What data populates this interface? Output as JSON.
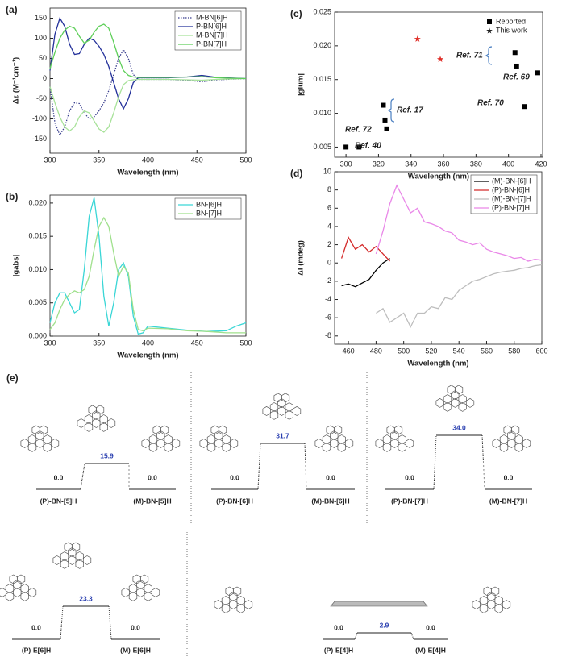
{
  "chart_data": [
    {
      "panel_label": "(a)",
      "type": "line",
      "x_label": "Wavelength (nm)",
      "y_label": "Δε (M⁻¹cm⁻¹)",
      "xlim": [
        300,
        500
      ],
      "xticks": [
        300,
        350,
        400,
        450,
        500
      ],
      "ylim": [
        -185,
        175
      ],
      "yticks": [
        -150,
        -100,
        -50,
        0,
        50,
        100,
        150
      ],
      "legend": "upper right",
      "x": [
        300,
        305,
        310,
        315,
        320,
        325,
        330,
        335,
        340,
        345,
        350,
        355,
        360,
        365,
        370,
        375,
        380,
        385,
        390,
        400,
        420,
        440,
        455,
        470,
        500
      ],
      "series": [
        {
          "name": "M-BN[6]H",
          "color": "#3a3f8f",
          "line_style": "dotted",
          "values": [
            -20,
            -110,
            -140,
            -120,
            -80,
            -60,
            -62,
            -85,
            -100,
            -95,
            -80,
            -60,
            -30,
            10,
            50,
            72,
            50,
            10,
            -2,
            -2,
            -2,
            -4,
            -8,
            -3,
            0
          ]
        },
        {
          "name": "P-BN[6]H",
          "color": "#23309a",
          "line_style": "solid",
          "values": [
            20,
            110,
            150,
            130,
            85,
            60,
            62,
            85,
            100,
            95,
            80,
            60,
            30,
            -10,
            -50,
            -75,
            -50,
            -10,
            2,
            2,
            2,
            4,
            8,
            3,
            0
          ]
        },
        {
          "name": "M-BN[7]H",
          "color": "#a8e29a",
          "line_style": "solid",
          "values": [
            -20,
            -60,
            -95,
            -120,
            -130,
            -120,
            -95,
            -80,
            -85,
            -105,
            -125,
            -133,
            -120,
            -85,
            -45,
            -15,
            -5,
            -3,
            -2,
            -2,
            -2,
            -3,
            -4,
            -2,
            0
          ]
        },
        {
          "name": "P-BN[7]H",
          "color": "#5fcf5a",
          "line_style": "solid",
          "values": [
            25,
            65,
            100,
            120,
            130,
            125,
            105,
            88,
            95,
            115,
            130,
            135,
            125,
            90,
            50,
            20,
            8,
            4,
            3,
            3,
            3,
            4,
            5,
            2,
            0
          ]
        }
      ]
    },
    {
      "panel_label": "(b)",
      "type": "line",
      "x_label": "Wavelength (nm)",
      "y_label": "|gabs|",
      "xlim": [
        300,
        500
      ],
      "xticks": [
        300,
        350,
        400,
        450,
        500
      ],
      "ylim": [
        0,
        0.0212
      ],
      "yticks": [
        {
          "value": 0,
          "label": "0.000"
        },
        {
          "value": 0.005,
          "label": "0.005"
        },
        {
          "value": 0.01,
          "label": "0.010"
        },
        {
          "value": 0.015,
          "label": "0.015"
        },
        {
          "value": 0.02,
          "label": "0.020"
        }
      ],
      "legend": "upper right",
      "x": [
        300,
        305,
        310,
        315,
        320,
        325,
        330,
        335,
        340,
        345,
        350,
        355,
        360,
        365,
        370,
        375,
        380,
        385,
        390,
        395,
        400,
        420,
        440,
        460,
        480,
        490,
        500
      ],
      "series": [
        {
          "name": "BN-[6]H",
          "color": "#3ad6d6",
          "line_style": "solid",
          "values": [
            0.002,
            0.005,
            0.0065,
            0.0065,
            0.005,
            0.0035,
            0.004,
            0.01,
            0.018,
            0.0208,
            0.015,
            0.006,
            0.0015,
            0.005,
            0.01,
            0.011,
            0.009,
            0.003,
            0.0003,
            0.0005,
            0.0015,
            0.0012,
            0.0009,
            0.0007,
            0.0008,
            0.0015,
            0.002
          ]
        },
        {
          "name": "BN-[7]H",
          "color": "#9fe08c",
          "line_style": "solid",
          "values": [
            0.001,
            0.002,
            0.004,
            0.0055,
            0.0063,
            0.0068,
            0.0065,
            0.007,
            0.009,
            0.013,
            0.0165,
            0.0178,
            0.0165,
            0.0125,
            0.009,
            0.0105,
            0.0095,
            0.004,
            0.001,
            0.0008,
            0.0012,
            0.0011,
            0.0008,
            0.0007,
            0.0005,
            0.0005,
            0.0005
          ]
        }
      ]
    },
    {
      "panel_label": "(c)",
      "type": "scatter",
      "x_label": "Wavelength (nm)",
      "y_label": "|glum|",
      "xlim": [
        293,
        421
      ],
      "xticks": [
        300,
        320,
        340,
        360,
        380,
        400,
        420
      ],
      "ylim": [
        0.0035,
        0.025
      ],
      "yticks": [
        {
          "value": 0.005,
          "label": "0.005"
        },
        {
          "value": 0.01,
          "label": "0.010"
        },
        {
          "value": 0.015,
          "label": "0.015"
        },
        {
          "value": 0.02,
          "label": "0.020"
        },
        {
          "value": 0.025,
          "label": "0.025"
        }
      ],
      "legend": "upper right",
      "annotations": [
        "Ref. 72",
        "Ref. 40",
        "Ref. 17",
        "Ref. 71",
        "Ref. 69",
        "Ref. 70"
      ],
      "series": [
        {
          "name": "Reported",
          "color": "#000000",
          "marker": "square",
          "x": [
            300,
            308,
            323,
            324,
            325,
            404,
            405,
            410,
            418
          ],
          "values": [
            0.005,
            0.005,
            0.0112,
            0.009,
            0.0077,
            0.019,
            0.017,
            0.011,
            0.016
          ]
        },
        {
          "name": "This work",
          "color": "#e0302a",
          "marker": "star",
          "x": [
            344,
            358
          ],
          "values": [
            0.021,
            0.018
          ]
        }
      ]
    },
    {
      "panel_label": "(d)",
      "type": "line",
      "x_label": "Wavelength (nm)",
      "y_label": "ΔI (mdeg)",
      "xlim": [
        450,
        600
      ],
      "xticks": [
        460,
        480,
        500,
        520,
        540,
        560,
        580,
        600
      ],
      "ylim": [
        -8.9,
        10
      ],
      "yticks": [
        -8,
        -6,
        -4,
        -2,
        0,
        2,
        4,
        6,
        8,
        10
      ],
      "legend": "upper right",
      "series": [
        {
          "name": "(M)-BN-[6]H",
          "color": "#000000",
          "line_style": "solid",
          "x": [
            455,
            460,
            465,
            470,
            475,
            480,
            485,
            490
          ],
          "values": [
            -2.5,
            -2.3,
            -2.6,
            -2.2,
            -1.8,
            -0.8,
            0,
            0.5
          ]
        },
        {
          "name": "(P)-BN-[6]H",
          "color": "#d42a2a",
          "line_style": "solid",
          "x": [
            455,
            460,
            465,
            470,
            475,
            480,
            485,
            490
          ],
          "values": [
            0.5,
            2.8,
            1.5,
            2,
            1.2,
            1.8,
            1,
            0.2
          ]
        },
        {
          "name": "(M)-BN-[7]H",
          "color": "#bdbdbd",
          "line_style": "solid",
          "x": [
            480,
            485,
            490,
            495,
            500,
            505,
            510,
            515,
            520,
            525,
            530,
            535,
            540,
            545,
            550,
            555,
            560,
            565,
            570,
            575,
            580,
            585,
            590,
            595,
            600
          ],
          "values": [
            -5.5,
            -5,
            -6.5,
            -6,
            -5.5,
            -7,
            -5.5,
            -5.5,
            -4.8,
            -5,
            -3.8,
            -4,
            -3,
            -2.5,
            -2,
            -1.8,
            -1.5,
            -1.2,
            -1,
            -0.9,
            -0.8,
            -0.6,
            -0.5,
            -0.3,
            -0.2
          ]
        },
        {
          "name": "(P)-BN-[7]H",
          "color": "#e987e8",
          "line_style": "solid",
          "x": [
            480,
            485,
            490,
            495,
            500,
            505,
            510,
            515,
            520,
            525,
            530,
            535,
            540,
            545,
            550,
            555,
            560,
            565,
            570,
            575,
            580,
            585,
            590,
            595,
            600
          ],
          "values": [
            1,
            3.5,
            6.5,
            8.5,
            7,
            5.5,
            6,
            4.5,
            4.3,
            4,
            3.5,
            3.3,
            2.5,
            2.3,
            2,
            2.2,
            1.5,
            1.2,
            1,
            0.8,
            0.5,
            0.6,
            0.2,
            0.4,
            0.3
          ]
        }
      ]
    }
  ],
  "energy_diagram": {
    "panel_label": "(e)",
    "profiles": [
      {
        "left_label": "(P)-BN-[5]H",
        "right_label": "(M)-BN-[5]H",
        "left_energy": "0.0",
        "barrier": "15.9",
        "right_energy": "0.0"
      },
      {
        "left_label": "(P)-BN-[6]H",
        "right_label": "(M)-BN-[6]H",
        "left_energy": "0.0",
        "barrier": "31.7",
        "right_energy": "0.0"
      },
      {
        "left_label": "(P)-BN-[7]H",
        "right_label": "(M)-BN-[7]H",
        "left_energy": "0.0",
        "barrier": "34.0",
        "right_energy": "0.0"
      },
      {
        "left_label": "(P)-E[6]H",
        "right_label": "(M)-E[6]H",
        "left_energy": "0.0",
        "barrier": "23.3",
        "right_energy": "0.0"
      },
      {
        "left_label": "(P)-E[4]H",
        "right_label": "(M)-E[4]H",
        "left_energy": "0.0",
        "barrier": "2.9",
        "right_energy": "0.0"
      }
    ]
  }
}
